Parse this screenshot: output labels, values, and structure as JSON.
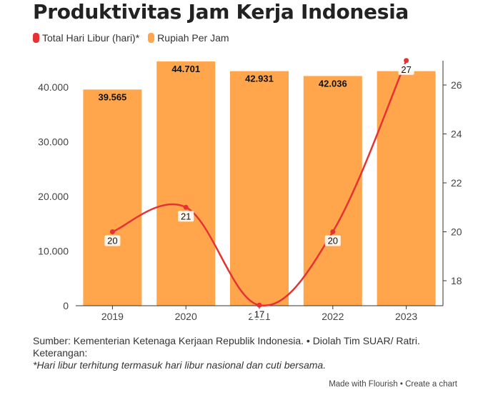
{
  "title": "Produktivitas Jam Kerja Indonesia",
  "legend": {
    "line_label": "Total Hari Libur (hari)*",
    "bar_label": "Rupiah Per Jam"
  },
  "colors": {
    "bar": "#ffa64d",
    "line": "#e63232",
    "axis": "#333333"
  },
  "chart_data": {
    "type": "bar",
    "categories": [
      "2019",
      "2020",
      "2021",
      "2022",
      "2023"
    ],
    "series": [
      {
        "name": "Rupiah Per Jam",
        "type": "bar",
        "axis": "left",
        "values": [
          39565,
          44701,
          42931,
          42036,
          42931
        ],
        "labels": [
          "39.565",
          "44.701",
          "42.931",
          "42.036",
          ""
        ]
      },
      {
        "name": "Total Hari Libur (hari)*",
        "type": "line",
        "axis": "right",
        "values": [
          20,
          21,
          17,
          20,
          27
        ],
        "labels": [
          "20",
          "21",
          "17",
          "20",
          "27"
        ]
      }
    ],
    "y_left": {
      "min": 0,
      "max": 45000,
      "ticks": [
        0,
        10000,
        20000,
        30000,
        40000
      ],
      "tick_labels": [
        "0",
        "10.000",
        "20.000",
        "30.000",
        "40.000"
      ]
    },
    "y_right": {
      "min": 17,
      "max": 27,
      "ticks": [
        18,
        20,
        22,
        24,
        26
      ],
      "tick_labels": [
        "18",
        "20",
        "22",
        "24",
        "26"
      ]
    }
  },
  "footer": {
    "source": "Sumber: Kementerian Ketenaga Kerjaan Republik Indonesia. • Diolah Tim SUAR/ Ratri.",
    "keterangan": "Keterangan:",
    "note": "*Hari libur terhitung termasuk hari libur nasional dan cuti bersama."
  },
  "credit": {
    "made_with": "Made with Flourish",
    "separator": " • ",
    "create": "Create a chart"
  }
}
